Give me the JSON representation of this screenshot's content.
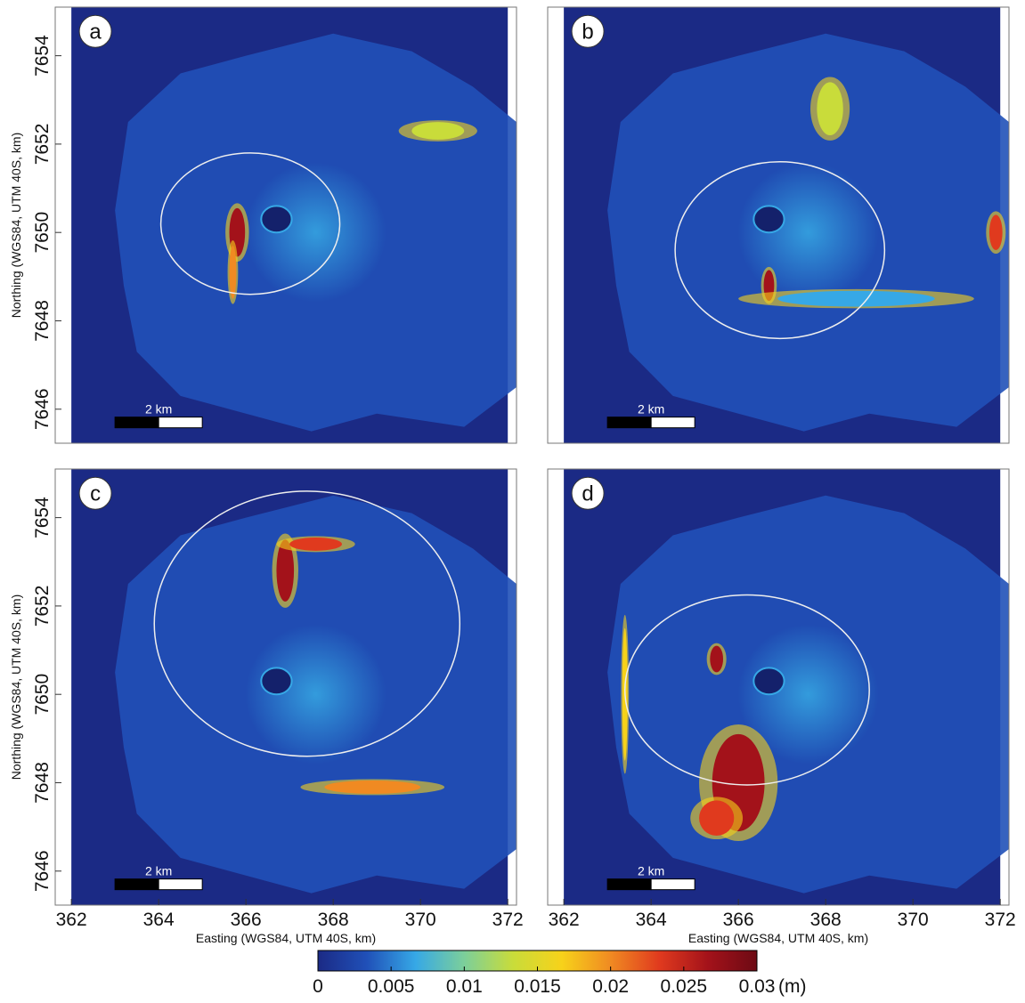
{
  "chart_data": [
    {
      "type": "map",
      "panel_label": "a",
      "xlim": [
        361.63,
        372.2
      ],
      "ylim": [
        7645.23,
        7655.1
      ],
      "yticks": [
        7646,
        7648,
        7650,
        7652,
        7654
      ],
      "ylabel": "Northing (WGS84, UTM 40S, km)",
      "scale_bar_label": "2 km"
    },
    {
      "type": "map",
      "panel_label": "b",
      "xlim": [
        361.63,
        372.2
      ],
      "ylim": [
        7645.23,
        7655.1
      ],
      "scale_bar_label": "2 km"
    },
    {
      "type": "map",
      "panel_label": "c",
      "xlim": [
        361.63,
        372.2
      ],
      "ylim": [
        7645.23,
        7655.1
      ],
      "xticks": [
        362,
        364,
        366,
        368,
        370,
        372
      ],
      "yticks": [
        7646,
        7648,
        7650,
        7652,
        7654
      ],
      "xlabel": "Easting (WGS84, UTM 40S, km)",
      "ylabel": "Northing (WGS84, UTM 40S, km)",
      "scale_bar_label": "2 km"
    },
    {
      "type": "map",
      "panel_label": "d",
      "xlim": [
        361.63,
        372.2
      ],
      "ylim": [
        7645.23,
        7655.1
      ],
      "xticks": [
        362,
        364,
        366,
        368,
        370,
        372
      ],
      "xlabel": "Easting (WGS84, UTM 40S, km)",
      "scale_bar_label": "2 km"
    },
    {
      "type": "colorbar",
      "xlim": [
        0,
        0.03
      ],
      "ticks": [
        0,
        0.005,
        0.01,
        0.015,
        0.02,
        0.025,
        0.03
      ],
      "unit": "(m)",
      "colors": [
        "#1b2a85",
        "#2050b8",
        "#36a8e6",
        "#7ccf9a",
        "#c9dc3a",
        "#f7d21a",
        "#f08a22",
        "#e03a1e",
        "#a3121a",
        "#6d0a14"
      ]
    }
  ]
}
